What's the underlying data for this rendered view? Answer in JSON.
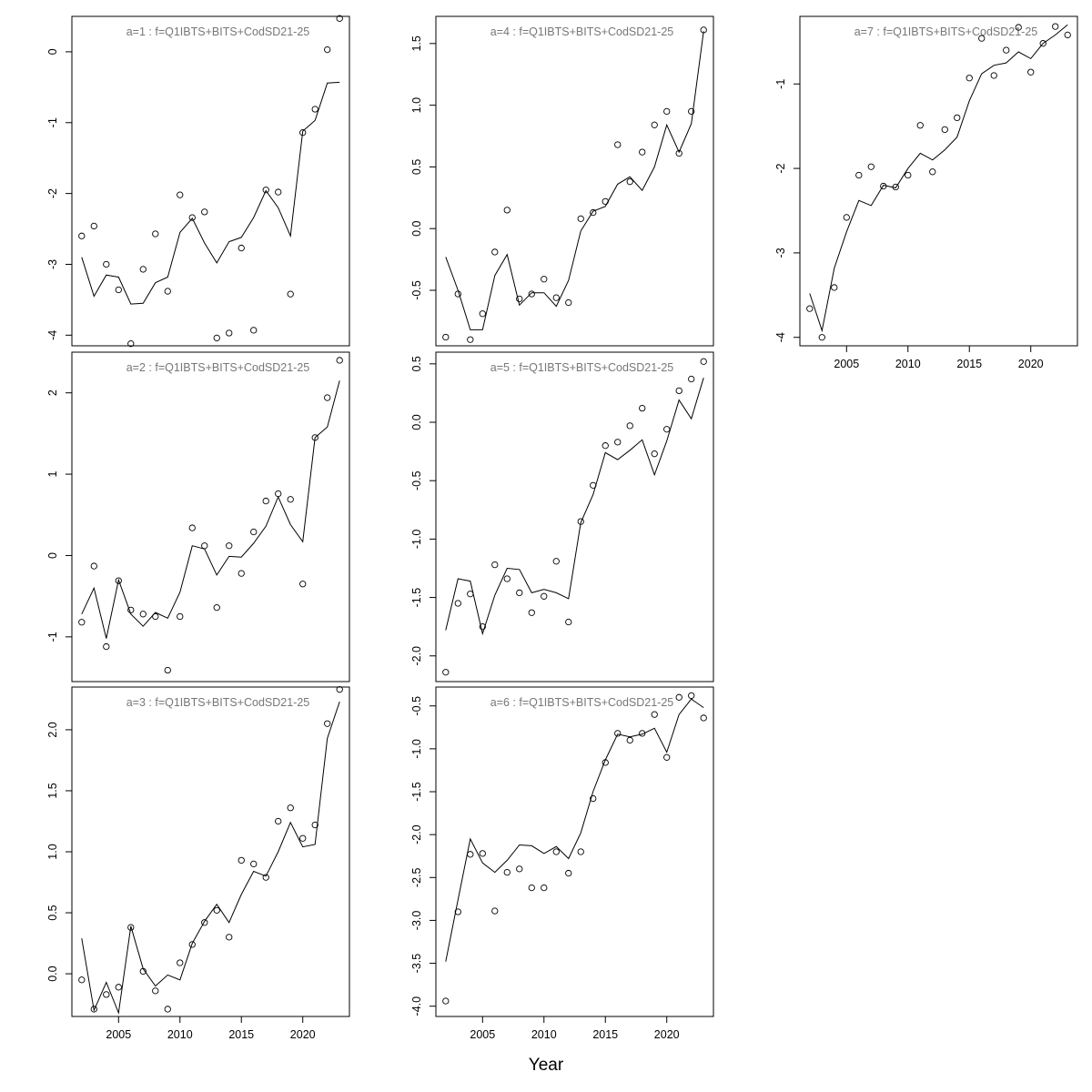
{
  "figure": {
    "xlabel": "Year"
  },
  "chart_data": [
    {
      "type": "line",
      "title": "a=1  :  f=Q1IBTS+BITS+CodSD21-25",
      "ylim": [
        -4.15,
        0.5
      ],
      "yticks": [
        -4,
        -3,
        -2,
        -1,
        0
      ],
      "xlim": [
        2001.2,
        2023.8
      ],
      "xticks": [
        2005,
        2010,
        2015,
        2020
      ],
      "show_xticks": false,
      "series": [
        {
          "kind": "points",
          "x": [
            2002,
            2003,
            2004,
            2005,
            2006,
            2007,
            2008,
            2009,
            2010,
            2011,
            2012,
            2013,
            2014,
            2015,
            2016,
            2017,
            2018,
            2019,
            2020,
            2021,
            2022,
            2023
          ],
          "values": [
            -2.6,
            -2.46,
            -3.0,
            -3.36,
            -4.12,
            -3.07,
            -2.57,
            -3.38,
            -2.02,
            -2.34,
            -2.26,
            -4.04,
            -3.97,
            -2.77,
            -3.93,
            -1.95,
            -1.98,
            -3.42,
            -1.14,
            -0.81,
            0.03,
            0.47
          ]
        },
        {
          "kind": "line",
          "x": [
            2002,
            2003,
            2004,
            2005,
            2006,
            2007,
            2008,
            2009,
            2010,
            2011,
            2012,
            2013,
            2014,
            2015,
            2016,
            2017,
            2018,
            2019,
            2020,
            2021,
            2022,
            2023
          ],
          "values": [
            -2.9,
            -3.45,
            -3.15,
            -3.18,
            -3.56,
            -3.55,
            -3.26,
            -3.18,
            -2.55,
            -2.35,
            -2.7,
            -2.98,
            -2.68,
            -2.62,
            -2.34,
            -1.96,
            -2.2,
            -2.6,
            -1.12,
            -0.97,
            -0.44,
            -0.43
          ]
        }
      ]
    },
    {
      "type": "line",
      "title": "a=2  :  f=Q1IBTS+BITS+CodSD21-25",
      "ylim": [
        -1.55,
        2.5
      ],
      "yticks": [
        -1,
        0,
        1,
        2
      ],
      "xlim": [
        2001.2,
        2023.8
      ],
      "xticks": [
        2005,
        2010,
        2015,
        2020
      ],
      "show_xticks": false,
      "series": [
        {
          "kind": "points",
          "x": [
            2002,
            2003,
            2004,
            2005,
            2006,
            2007,
            2008,
            2009,
            2010,
            2011,
            2012,
            2013,
            2014,
            2015,
            2016,
            2017,
            2018,
            2019,
            2020,
            2021,
            2022,
            2023
          ],
          "values": [
            -0.82,
            -0.13,
            -1.12,
            -0.31,
            -0.67,
            -0.72,
            -0.75,
            -1.41,
            -0.75,
            0.34,
            0.12,
            -0.64,
            0.12,
            -0.22,
            0.29,
            0.67,
            0.76,
            0.69,
            -0.35,
            1.45,
            1.94,
            2.4
          ]
        },
        {
          "kind": "line",
          "x": [
            2002,
            2003,
            2004,
            2005,
            2006,
            2007,
            2008,
            2009,
            2010,
            2011,
            2012,
            2013,
            2014,
            2015,
            2016,
            2017,
            2018,
            2019,
            2020,
            2021,
            2022,
            2023
          ],
          "values": [
            -0.72,
            -0.4,
            -1.02,
            -0.3,
            -0.72,
            -0.87,
            -0.7,
            -0.77,
            -0.45,
            0.12,
            0.08,
            -0.24,
            -0.01,
            -0.02,
            0.15,
            0.36,
            0.72,
            0.38,
            0.17,
            1.45,
            1.58,
            2.15
          ]
        }
      ]
    },
    {
      "type": "line",
      "title": "a=3  :  f=Q1IBTS+BITS+CodSD21-25",
      "ylim": [
        -0.35,
        2.35
      ],
      "yticks": [
        0.0,
        0.5,
        1.0,
        1.5,
        2.0
      ],
      "xlim": [
        2001.2,
        2023.8
      ],
      "xticks": [
        2005,
        2010,
        2015,
        2020
      ],
      "show_xticks": true,
      "series": [
        {
          "kind": "points",
          "x": [
            2002,
            2003,
            2004,
            2005,
            2006,
            2007,
            2008,
            2009,
            2010,
            2011,
            2012,
            2013,
            2014,
            2015,
            2016,
            2017,
            2018,
            2019,
            2020,
            2021,
            2022,
            2023
          ],
          "values": [
            -0.05,
            -0.29,
            -0.17,
            -0.11,
            0.38,
            0.02,
            -0.14,
            -0.29,
            0.09,
            0.24,
            0.42,
            0.52,
            0.3,
            0.93,
            0.9,
            0.79,
            1.25,
            1.36,
            1.11,
            1.22,
            2.05,
            2.33
          ]
        },
        {
          "kind": "line",
          "x": [
            2002,
            2003,
            2004,
            2005,
            2006,
            2007,
            2008,
            2009,
            2010,
            2011,
            2012,
            2013,
            2014,
            2015,
            2016,
            2017,
            2018,
            2019,
            2020,
            2021,
            2022,
            2023
          ],
          "values": [
            0.29,
            -0.3,
            -0.07,
            -0.32,
            0.39,
            0.04,
            -0.1,
            -0.01,
            -0.05,
            0.25,
            0.43,
            0.57,
            0.42,
            0.65,
            0.84,
            0.8,
            1.0,
            1.24,
            1.04,
            1.06,
            1.93,
            2.23
          ]
        }
      ]
    },
    {
      "type": "line",
      "title": "a=4  :  f=Q1IBTS+BITS+CodSD21-25",
      "ylim": [
        -0.95,
        1.72
      ],
      "yticks": [
        -0.5,
        0.0,
        0.5,
        1.0,
        1.5
      ],
      "xlim": [
        2001.2,
        2023.8
      ],
      "xticks": [
        2005,
        2010,
        2015,
        2020
      ],
      "show_xticks": false,
      "series": [
        {
          "kind": "points",
          "x": [
            2002,
            2003,
            2004,
            2005,
            2006,
            2007,
            2008,
            2009,
            2010,
            2011,
            2012,
            2013,
            2014,
            2015,
            2016,
            2017,
            2018,
            2019,
            2020,
            2021,
            2022,
            2023
          ],
          "values": [
            -0.88,
            -0.53,
            -0.9,
            -0.69,
            -0.19,
            0.15,
            -0.57,
            -0.53,
            -0.41,
            -0.56,
            -0.6,
            0.08,
            0.13,
            0.22,
            0.68,
            0.38,
            0.62,
            0.84,
            0.95,
            0.61,
            0.95,
            1.61
          ]
        },
        {
          "kind": "line",
          "x": [
            2002,
            2003,
            2004,
            2005,
            2006,
            2007,
            2008,
            2009,
            2010,
            2011,
            2012,
            2013,
            2014,
            2015,
            2016,
            2017,
            2018,
            2019,
            2020,
            2021,
            2022,
            2023
          ],
          "values": [
            -0.23,
            -0.5,
            -0.82,
            -0.82,
            -0.38,
            -0.21,
            -0.62,
            -0.52,
            -0.52,
            -0.63,
            -0.42,
            -0.02,
            0.14,
            0.18,
            0.36,
            0.42,
            0.31,
            0.5,
            0.84,
            0.62,
            0.85,
            1.6
          ]
        }
      ]
    },
    {
      "type": "line",
      "title": "a=5  :  f=Q1IBTS+BITS+CodSD21-25",
      "ylim": [
        -2.22,
        0.6
      ],
      "yticks": [
        -2.0,
        -1.5,
        -1.0,
        -0.5,
        0.0,
        0.5
      ],
      "xlim": [
        2001.2,
        2023.8
      ],
      "xticks": [
        2005,
        2010,
        2015,
        2020
      ],
      "show_xticks": false,
      "series": [
        {
          "kind": "points",
          "x": [
            2002,
            2003,
            2004,
            2005,
            2006,
            2007,
            2008,
            2009,
            2010,
            2011,
            2012,
            2013,
            2014,
            2015,
            2016,
            2017,
            2018,
            2019,
            2020,
            2021,
            2022,
            2023
          ],
          "values": [
            -2.14,
            -1.55,
            -1.47,
            -1.75,
            -1.22,
            -1.34,
            -1.46,
            -1.63,
            -1.49,
            -1.19,
            -1.71,
            -0.85,
            -0.54,
            -0.2,
            -0.17,
            -0.03,
            0.12,
            -0.27,
            -0.06,
            0.27,
            0.37,
            0.52
          ]
        },
        {
          "kind": "line",
          "x": [
            2002,
            2003,
            2004,
            2005,
            2006,
            2007,
            2008,
            2009,
            2010,
            2011,
            2012,
            2013,
            2014,
            2015,
            2016,
            2017,
            2018,
            2019,
            2020,
            2021,
            2022,
            2023
          ],
          "values": [
            -1.78,
            -1.34,
            -1.36,
            -1.81,
            -1.48,
            -1.25,
            -1.26,
            -1.46,
            -1.43,
            -1.46,
            -1.51,
            -0.86,
            -0.62,
            -0.26,
            -0.32,
            -0.24,
            -0.15,
            -0.45,
            -0.16,
            0.19,
            0.03,
            0.38
          ]
        }
      ]
    },
    {
      "type": "line",
      "title": "a=6  :  f=Q1IBTS+BITS+CodSD21-25",
      "ylim": [
        -4.12,
        -0.28
      ],
      "yticks": [
        -4.0,
        -3.5,
        -3.0,
        -2.5,
        -2.0,
        -1.5,
        -1.0,
        -0.5
      ],
      "xlim": [
        2001.2,
        2023.8
      ],
      "xticks": [
        2005,
        2010,
        2015,
        2020
      ],
      "show_xticks": true,
      "series": [
        {
          "kind": "points",
          "x": [
            2002,
            2003,
            2004,
            2005,
            2006,
            2007,
            2008,
            2009,
            2010,
            2011,
            2012,
            2013,
            2014,
            2015,
            2016,
            2017,
            2018,
            2019,
            2020,
            2021,
            2022,
            2023
          ],
          "values": [
            -3.94,
            -2.9,
            -2.23,
            -2.22,
            -2.89,
            -2.44,
            -2.4,
            -2.62,
            -2.62,
            -2.2,
            -2.45,
            -2.2,
            -1.58,
            -1.16,
            -0.82,
            -0.9,
            -0.82,
            -0.6,
            -1.1,
            -0.4,
            -0.38,
            -0.64
          ]
        },
        {
          "kind": "line",
          "x": [
            2002,
            2003,
            2004,
            2005,
            2006,
            2007,
            2008,
            2009,
            2010,
            2011,
            2012,
            2013,
            2014,
            2015,
            2016,
            2017,
            2018,
            2019,
            2020,
            2021,
            2022,
            2023
          ],
          "values": [
            -3.48,
            -2.76,
            -2.05,
            -2.33,
            -2.44,
            -2.3,
            -2.12,
            -2.13,
            -2.22,
            -2.14,
            -2.28,
            -1.98,
            -1.5,
            -1.13,
            -0.83,
            -0.86,
            -0.83,
            -0.76,
            -1.04,
            -0.6,
            -0.42,
            -0.52
          ]
        }
      ]
    },
    {
      "type": "line",
      "title": "a=7  :  f=Q1IBTS+BITS+CodSD21-25",
      "ylim": [
        -4.1,
        -0.2
      ],
      "yticks": [
        -4,
        -3,
        -2,
        -1
      ],
      "xlim": [
        2001.2,
        2023.8
      ],
      "xticks": [
        2005,
        2010,
        2015,
        2020
      ],
      "show_xticks": true,
      "series": [
        {
          "kind": "points",
          "x": [
            2002,
            2003,
            2004,
            2005,
            2006,
            2007,
            2008,
            2009,
            2010,
            2011,
            2012,
            2013,
            2014,
            2015,
            2016,
            2017,
            2018,
            2019,
            2020,
            2021,
            2022,
            2023
          ],
          "values": [
            -3.66,
            -4.0,
            -3.41,
            -2.58,
            -2.08,
            -1.98,
            -2.21,
            -2.22,
            -2.08,
            -1.49,
            -2.04,
            -1.54,
            -1.4,
            -0.93,
            -0.46,
            -0.9,
            -0.6,
            -0.33,
            -0.86,
            -0.52,
            -0.32,
            -0.42
          ]
        },
        {
          "kind": "line",
          "x": [
            2002,
            2003,
            2004,
            2005,
            2006,
            2007,
            2008,
            2009,
            2010,
            2011,
            2012,
            2013,
            2014,
            2015,
            2016,
            2017,
            2018,
            2019,
            2020,
            2021,
            2022,
            2023
          ],
          "values": [
            -3.48,
            -3.92,
            -3.18,
            -2.75,
            -2.38,
            -2.44,
            -2.2,
            -2.23,
            -2.0,
            -1.82,
            -1.9,
            -1.78,
            -1.63,
            -1.2,
            -0.88,
            -0.78,
            -0.75,
            -0.62,
            -0.7,
            -0.52,
            -0.42,
            -0.3
          ]
        }
      ]
    }
  ]
}
